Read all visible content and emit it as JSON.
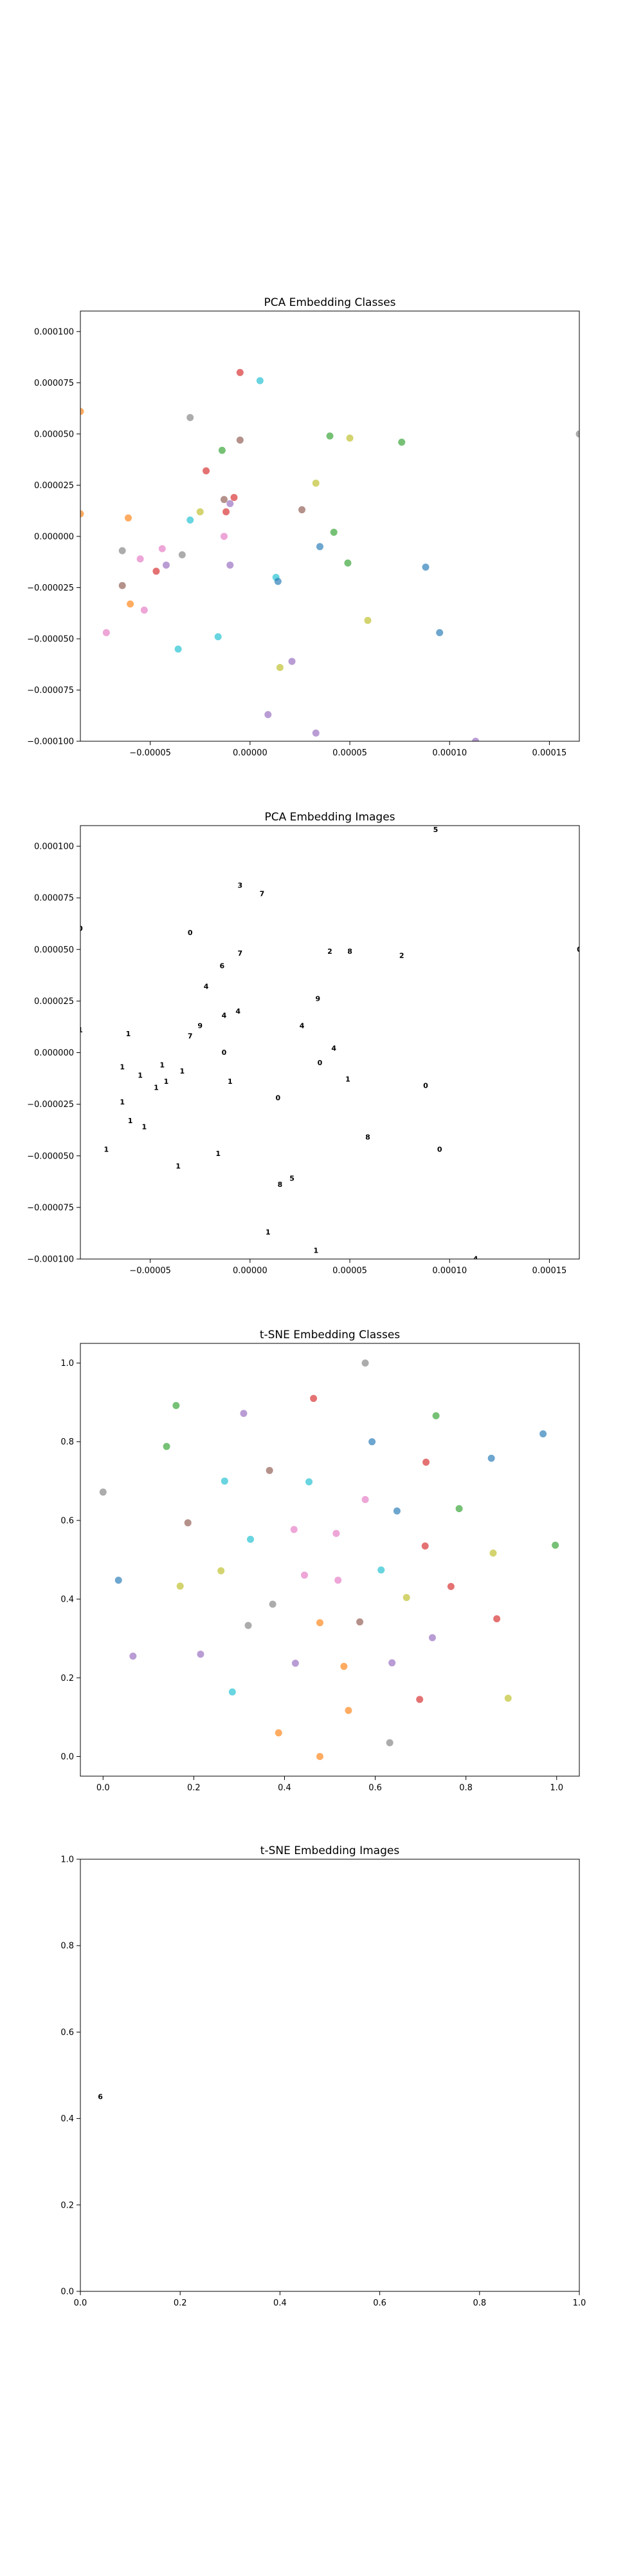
{
  "chart_data": [
    {
      "type": "scatter",
      "title": "PCA Embedding Classes",
      "xlabel": "",
      "ylabel": "",
      "xlim": [
        -8.5e-05,
        0.000165
      ],
      "ylim": [
        -0.0001,
        0.00011
      ],
      "xticks": [
        -5e-05,
        0.0,
        5e-05,
        0.0001,
        0.00015
      ],
      "xtick_labels": [
        "−0.00005",
        "0.00000",
        "0.00005",
        "0.00010",
        "0.00015"
      ],
      "yticks": [
        -0.0001,
        -7.5e-05,
        -5e-05,
        -2.5e-05,
        0.0,
        2.5e-05,
        5e-05,
        7.5e-05,
        0.0001
      ],
      "ytick_labels": [
        "−0.000100",
        "−0.000075",
        "−0.000050",
        "−0.000025",
        "0.000000",
        "0.000025",
        "0.000050",
        "0.000075",
        "0.000100"
      ],
      "grid": false,
      "points": [
        {
          "x": 5e-06,
          "y": 7.6e-05,
          "color": "#17becf"
        },
        {
          "x": -5e-06,
          "y": 8e-05,
          "color": "#d62728"
        },
        {
          "x": -3e-05,
          "y": 5.8e-05,
          "color": "#7f7f7f"
        },
        {
          "x": -5e-06,
          "y": 4.7e-05,
          "color": "#8c564b"
        },
        {
          "x": -1.4e-05,
          "y": 4.2e-05,
          "color": "#2ca02c"
        },
        {
          "x": -2.2e-05,
          "y": 3.2e-05,
          "color": "#d62728"
        },
        {
          "x": 4e-05,
          "y": 4.9e-05,
          "color": "#2ca02c"
        },
        {
          "x": 5e-05,
          "y": 4.8e-05,
          "color": "#bcbd22"
        },
        {
          "x": 7.6e-05,
          "y": 4.6e-05,
          "color": "#2ca02c"
        },
        {
          "x": 0.000165,
          "y": 5e-05,
          "color": "#7f7f7f"
        },
        {
          "x": -8.5e-05,
          "y": 6.1e-05,
          "color": "#ff7f0e"
        },
        {
          "x": 3.3e-05,
          "y": 2.6e-05,
          "color": "#bcbd22"
        },
        {
          "x": -1.3e-05,
          "y": 1.8e-05,
          "color": "#8c564b"
        },
        {
          "x": -8e-06,
          "y": 1.9e-05,
          "color": "#d62728"
        },
        {
          "x": -1e-05,
          "y": 1.6e-05,
          "color": "#9467bd"
        },
        {
          "x": -1.2e-05,
          "y": 1.2e-05,
          "color": "#d62728"
        },
        {
          "x": -2.5e-05,
          "y": 1.2e-05,
          "color": "#bcbd22"
        },
        {
          "x": 2.6e-05,
          "y": 1.3e-05,
          "color": "#8c564b"
        },
        {
          "x": -8.5e-05,
          "y": 1.1e-05,
          "color": "#ff7f0e"
        },
        {
          "x": -6.1e-05,
          "y": 9e-06,
          "color": "#ff7f0e"
        },
        {
          "x": -3e-05,
          "y": 8e-06,
          "color": "#17becf"
        },
        {
          "x": 4.2e-05,
          "y": 2e-06,
          "color": "#2ca02c"
        },
        {
          "x": -1.3e-05,
          "y": 0.0,
          "color": "#e377c2"
        },
        {
          "x": 3.5e-05,
          "y": -5e-06,
          "color": "#1f77b4"
        },
        {
          "x": -6.4e-05,
          "y": -7e-06,
          "color": "#7f7f7f"
        },
        {
          "x": -4.4e-05,
          "y": -6e-06,
          "color": "#e377c2"
        },
        {
          "x": -3.4e-05,
          "y": -9e-06,
          "color": "#7f7f7f"
        },
        {
          "x": -5.5e-05,
          "y": -1.1e-05,
          "color": "#e377c2"
        },
        {
          "x": -4.2e-05,
          "y": -1.4e-05,
          "color": "#9467bd"
        },
        {
          "x": -1e-05,
          "y": -1.4e-05,
          "color": "#9467bd"
        },
        {
          "x": 4.9e-05,
          "y": -1.3e-05,
          "color": "#2ca02c"
        },
        {
          "x": 8.8e-05,
          "y": -1.5e-05,
          "color": "#1f77b4"
        },
        {
          "x": -4.7e-05,
          "y": -1.7e-05,
          "color": "#d62728"
        },
        {
          "x": 1.3e-05,
          "y": -2e-05,
          "color": "#17becf"
        },
        {
          "x": 1.4e-05,
          "y": -2.2e-05,
          "color": "#1f77b4"
        },
        {
          "x": -6.4e-05,
          "y": -2.4e-05,
          "color": "#8c564b"
        },
        {
          "x": -6e-05,
          "y": -3.3e-05,
          "color": "#ff7f0e"
        },
        {
          "x": -5.3e-05,
          "y": -3.6e-05,
          "color": "#e377c2"
        },
        {
          "x": 5.9e-05,
          "y": -4.1e-05,
          "color": "#bcbd22"
        },
        {
          "x": -7.2e-05,
          "y": -4.7e-05,
          "color": "#e377c2"
        },
        {
          "x": -1.6e-05,
          "y": -4.9e-05,
          "color": "#17becf"
        },
        {
          "x": 9.5e-05,
          "y": -4.7e-05,
          "color": "#1f77b4"
        },
        {
          "x": -3.6e-05,
          "y": -5.5e-05,
          "color": "#17becf"
        },
        {
          "x": 2.1e-05,
          "y": -6.1e-05,
          "color": "#9467bd"
        },
        {
          "x": 1.5e-05,
          "y": -6.4e-05,
          "color": "#bcbd22"
        },
        {
          "x": 9e-06,
          "y": -8.7e-05,
          "color": "#9467bd"
        },
        {
          "x": 3.3e-05,
          "y": -9.6e-05,
          "color": "#9467bd"
        },
        {
          "x": 0.000113,
          "y": -0.0001,
          "color": "#9467bd"
        }
      ]
    },
    {
      "type": "scatter",
      "title": "PCA Embedding Images",
      "xlabel": "",
      "ylabel": "",
      "xlim": [
        -8.5e-05,
        0.000165
      ],
      "ylim": [
        -0.0001,
        0.00011
      ],
      "xticks": [
        -5e-05,
        0.0,
        5e-05,
        0.0001,
        0.00015
      ],
      "xtick_labels": [
        "−0.00005",
        "0.00000",
        "0.00005",
        "0.00010",
        "0.00015"
      ],
      "yticks": [
        -0.0001,
        -7.5e-05,
        -5e-05,
        -2.5e-05,
        0.0,
        2.5e-05,
        5e-05,
        7.5e-05,
        0.0001
      ],
      "ytick_labels": [
        "−0.000100",
        "−0.000075",
        "−0.000050",
        "−0.000025",
        "0.000000",
        "0.000025",
        "0.000050",
        "0.000075",
        "0.000100"
      ],
      "grid": false,
      "markers": [
        {
          "x": 9.3e-05,
          "y": 0.000108,
          "glyph": "5"
        },
        {
          "x": -5e-06,
          "y": 8.1e-05,
          "glyph": "3"
        },
        {
          "x": 6e-06,
          "y": 7.7e-05,
          "glyph": "7"
        },
        {
          "x": -8.5e-05,
          "y": 6e-05,
          "glyph": "0"
        },
        {
          "x": -3e-05,
          "y": 5.8e-05,
          "glyph": "0"
        },
        {
          "x": -5e-06,
          "y": 4.8e-05,
          "glyph": "7"
        },
        {
          "x": 4e-05,
          "y": 4.9e-05,
          "glyph": "2"
        },
        {
          "x": 5e-05,
          "y": 4.9e-05,
          "glyph": "8"
        },
        {
          "x": 7.6e-05,
          "y": 4.7e-05,
          "glyph": "2"
        },
        {
          "x": 0.000165,
          "y": 5e-05,
          "glyph": "0"
        },
        {
          "x": -1.4e-05,
          "y": 4.2e-05,
          "glyph": "6"
        },
        {
          "x": -2.2e-05,
          "y": 3.2e-05,
          "glyph": "4"
        },
        {
          "x": 3.4e-05,
          "y": 2.6e-05,
          "glyph": "9"
        },
        {
          "x": -6e-06,
          "y": 2e-05,
          "glyph": "4"
        },
        {
          "x": -1.3e-05,
          "y": 1.8e-05,
          "glyph": "4"
        },
        {
          "x": -2.5e-05,
          "y": 1.3e-05,
          "glyph": "9"
        },
        {
          "x": 2.6e-05,
          "y": 1.3e-05,
          "glyph": "4"
        },
        {
          "x": -8.5e-05,
          "y": 1.1e-05,
          "glyph": "1"
        },
        {
          "x": -6.1e-05,
          "y": 9e-06,
          "glyph": "1"
        },
        {
          "x": -3e-05,
          "y": 8e-06,
          "glyph": "7"
        },
        {
          "x": -1.3e-05,
          "y": 0.0,
          "glyph": "0"
        },
        {
          "x": 4.2e-05,
          "y": 2e-06,
          "glyph": "4"
        },
        {
          "x": 3.5e-05,
          "y": -5e-06,
          "glyph": "0"
        },
        {
          "x": -4.4e-05,
          "y": -6e-06,
          "glyph": "1"
        },
        {
          "x": -6.4e-05,
          "y": -7e-06,
          "glyph": "1"
        },
        {
          "x": -3.4e-05,
          "y": -9e-06,
          "glyph": "1"
        },
        {
          "x": -5.5e-05,
          "y": -1.1e-05,
          "glyph": "1"
        },
        {
          "x": -4.2e-05,
          "y": -1.4e-05,
          "glyph": "1"
        },
        {
          "x": -1e-05,
          "y": -1.4e-05,
          "glyph": "1"
        },
        {
          "x": 4.9e-05,
          "y": -1.3e-05,
          "glyph": "1"
        },
        {
          "x": 8.8e-05,
          "y": -1.6e-05,
          "glyph": "0"
        },
        {
          "x": -4.7e-05,
          "y": -1.7e-05,
          "glyph": "1"
        },
        {
          "x": 1.4e-05,
          "y": -2.2e-05,
          "glyph": "0"
        },
        {
          "x": -6.4e-05,
          "y": -2.4e-05,
          "glyph": "1"
        },
        {
          "x": -6e-05,
          "y": -3.3e-05,
          "glyph": "1"
        },
        {
          "x": -5.3e-05,
          "y": -3.6e-05,
          "glyph": "1"
        },
        {
          "x": 5.9e-05,
          "y": -4.1e-05,
          "glyph": "8"
        },
        {
          "x": -7.2e-05,
          "y": -4.7e-05,
          "glyph": "1"
        },
        {
          "x": -1.6e-05,
          "y": -4.9e-05,
          "glyph": "1"
        },
        {
          "x": 9.5e-05,
          "y": -4.7e-05,
          "glyph": "0"
        },
        {
          "x": -3.6e-05,
          "y": -5.5e-05,
          "glyph": "1"
        },
        {
          "x": 2.1e-05,
          "y": -6.1e-05,
          "glyph": "5"
        },
        {
          "x": 1.5e-05,
          "y": -6.4e-05,
          "glyph": "8"
        },
        {
          "x": 9e-06,
          "y": -8.7e-05,
          "glyph": "1"
        },
        {
          "x": 3.3e-05,
          "y": -9.6e-05,
          "glyph": "1"
        },
        {
          "x": 0.000113,
          "y": -0.0001,
          "glyph": "4"
        }
      ]
    },
    {
      "type": "scatter",
      "title": "t-SNE Embedding Classes",
      "xlabel": "",
      "ylabel": "",
      "xlim": [
        -0.05,
        1.05
      ],
      "ylim": [
        -0.05,
        1.05
      ],
      "xticks": [
        0.0,
        0.2,
        0.4,
        0.6,
        0.8,
        1.0
      ],
      "xtick_labels": [
        "0.0",
        "0.2",
        "0.4",
        "0.6",
        "0.8",
        "1.0"
      ],
      "yticks": [
        0.0,
        0.2,
        0.4,
        0.6,
        0.8,
        1.0
      ],
      "ytick_labels": [
        "0.0",
        "0.2",
        "0.4",
        "0.6",
        "0.8",
        "1.0"
      ],
      "grid": false,
      "points": [
        {
          "x": 0.578,
          "y": 1.0,
          "color": "#7f7f7f"
        },
        {
          "x": 0.464,
          "y": 0.91,
          "color": "#d62728"
        },
        {
          "x": 0.161,
          "y": 0.892,
          "color": "#2ca02c"
        },
        {
          "x": 0.31,
          "y": 0.872,
          "color": "#9467bd"
        },
        {
          "x": 0.734,
          "y": 0.866,
          "color": "#2ca02c"
        },
        {
          "x": 0.593,
          "y": 0.8,
          "color": "#1f77b4"
        },
        {
          "x": 0.14,
          "y": 0.788,
          "color": "#2ca02c"
        },
        {
          "x": 0.97,
          "y": 0.82,
          "color": "#1f77b4"
        },
        {
          "x": 0.856,
          "y": 0.758,
          "color": "#1f77b4"
        },
        {
          "x": 0.712,
          "y": 0.748,
          "color": "#d62728"
        },
        {
          "x": 0.367,
          "y": 0.727,
          "color": "#8c564b"
        },
        {
          "x": 0.268,
          "y": 0.7,
          "color": "#17becf"
        },
        {
          "x": 0.454,
          "y": 0.698,
          "color": "#17becf"
        },
        {
          "x": 0.0,
          "y": 0.672,
          "color": "#7f7f7f"
        },
        {
          "x": 0.578,
          "y": 0.653,
          "color": "#e377c2"
        },
        {
          "x": 0.785,
          "y": 0.63,
          "color": "#2ca02c"
        },
        {
          "x": 0.648,
          "y": 0.624,
          "color": "#1f77b4"
        },
        {
          "x": 0.187,
          "y": 0.594,
          "color": "#8c564b"
        },
        {
          "x": 0.421,
          "y": 0.577,
          "color": "#e377c2"
        },
        {
          "x": 0.514,
          "y": 0.567,
          "color": "#e377c2"
        },
        {
          "x": 0.325,
          "y": 0.552,
          "color": "#17becf"
        },
        {
          "x": 0.71,
          "y": 0.535,
          "color": "#d62728"
        },
        {
          "x": 0.86,
          "y": 0.517,
          "color": "#bcbd22"
        },
        {
          "x": 0.997,
          "y": 0.537,
          "color": "#2ca02c"
        },
        {
          "x": 0.26,
          "y": 0.472,
          "color": "#bcbd22"
        },
        {
          "x": 0.613,
          "y": 0.474,
          "color": "#17becf"
        },
        {
          "x": 0.444,
          "y": 0.461,
          "color": "#e377c2"
        },
        {
          "x": 0.034,
          "y": 0.448,
          "color": "#1f77b4"
        },
        {
          "x": 0.518,
          "y": 0.448,
          "color": "#e377c2"
        },
        {
          "x": 0.17,
          "y": 0.433,
          "color": "#bcbd22"
        },
        {
          "x": 0.767,
          "y": 0.432,
          "color": "#d62728"
        },
        {
          "x": 0.669,
          "y": 0.404,
          "color": "#bcbd22"
        },
        {
          "x": 0.374,
          "y": 0.387,
          "color": "#7f7f7f"
        },
        {
          "x": 0.868,
          "y": 0.35,
          "color": "#d62728"
        },
        {
          "x": 0.478,
          "y": 0.34,
          "color": "#ff7f0e"
        },
        {
          "x": 0.566,
          "y": 0.342,
          "color": "#8c564b"
        },
        {
          "x": 0.32,
          "y": 0.333,
          "color": "#7f7f7f"
        },
        {
          "x": 0.726,
          "y": 0.302,
          "color": "#9467bd"
        },
        {
          "x": 0.066,
          "y": 0.255,
          "color": "#9467bd"
        },
        {
          "x": 0.215,
          "y": 0.26,
          "color": "#9467bd"
        },
        {
          "x": 0.424,
          "y": 0.237,
          "color": "#9467bd"
        },
        {
          "x": 0.531,
          "y": 0.229,
          "color": "#ff7f0e"
        },
        {
          "x": 0.637,
          "y": 0.238,
          "color": "#9467bd"
        },
        {
          "x": 0.285,
          "y": 0.164,
          "color": "#17becf"
        },
        {
          "x": 0.698,
          "y": 0.145,
          "color": "#d62728"
        },
        {
          "x": 0.893,
          "y": 0.148,
          "color": "#bcbd22"
        },
        {
          "x": 0.541,
          "y": 0.117,
          "color": "#ff7f0e"
        },
        {
          "x": 0.387,
          "y": 0.06,
          "color": "#ff7f0e"
        },
        {
          "x": 0.632,
          "y": 0.035,
          "color": "#7f7f7f"
        },
        {
          "x": 0.478,
          "y": 0.0,
          "color": "#ff7f0e"
        }
      ]
    },
    {
      "type": "scatter",
      "title": "t-SNE Embedding Images",
      "xlabel": "",
      "ylabel": "",
      "xlim": [
        0.0,
        1.0
      ],
      "ylim": [
        0.0,
        1.0
      ],
      "xticks": [
        0.0,
        0.2,
        0.4,
        0.6,
        0.8,
        1.0
      ],
      "xtick_labels": [
        "0.0",
        "0.2",
        "0.4",
        "0.6",
        "0.8",
        "1.0"
      ],
      "yticks": [
        0.0,
        0.2,
        0.4,
        0.6,
        0.8,
        1.0
      ],
      "ytick_labels": [
        "0.0",
        "0.2",
        "0.4",
        "0.6",
        "0.8",
        "1.0"
      ],
      "grid": false,
      "markers": [
        {
          "x": 0.04,
          "y": 0.45,
          "glyph": "6"
        }
      ]
    }
  ]
}
